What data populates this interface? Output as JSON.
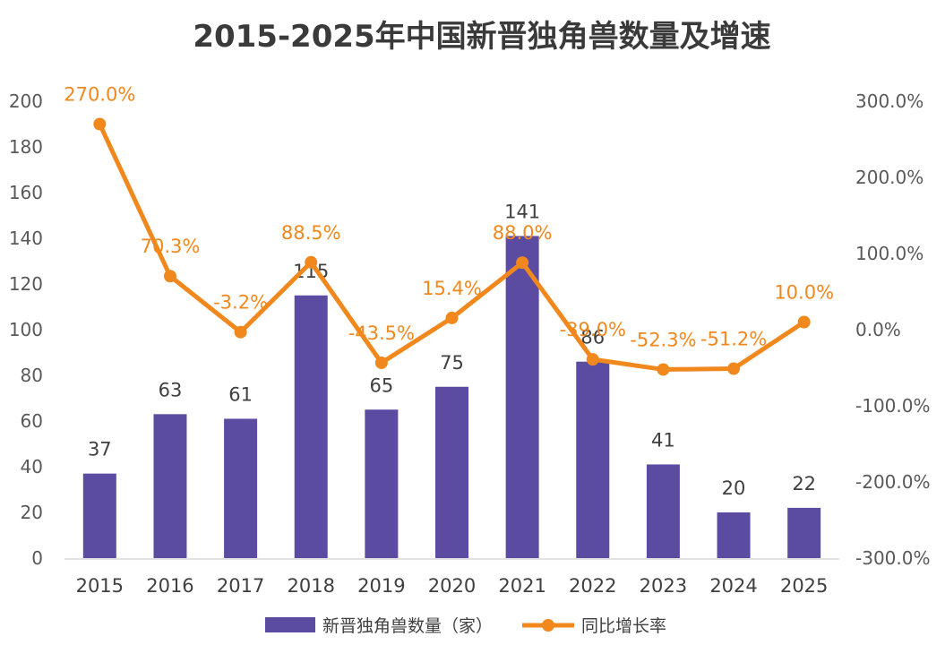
{
  "chart_data": {
    "type": "bar",
    "title": "2015-2025年中国新晋独角兽数量及增速",
    "categories": [
      "2015",
      "2016",
      "2017",
      "2018",
      "2019",
      "2020",
      "2021",
      "2022",
      "2023",
      "2024",
      "2025"
    ],
    "series": [
      {
        "name": "新晋独角兽数量（家）",
        "type": "bar",
        "axis": "left",
        "color": "#5b4ca2",
        "values": [
          37,
          63,
          61,
          115,
          65,
          75,
          141,
          86,
          41,
          20,
          22
        ],
        "labels": [
          "37",
          "63",
          "61",
          "115",
          "65",
          "75",
          "141",
          "86",
          "41",
          "20",
          "22"
        ]
      },
      {
        "name": "同比增长率",
        "type": "line",
        "axis": "right",
        "color": "#f0881e",
        "values": [
          270.0,
          70.3,
          -3.2,
          88.5,
          -43.5,
          15.4,
          88.0,
          -39.0,
          -52.3,
          -51.2,
          10.0
        ],
        "labels": [
          "270.0%",
          "70.3%",
          "-3.2%",
          "88.5%",
          "-43.5%",
          "15.4%",
          "88.0%",
          "-39.0%",
          "-52.3%",
          "-51.2%",
          "10.0%"
        ]
      }
    ],
    "y_left": {
      "min": 0,
      "max": 200,
      "ticks": [
        0,
        20,
        40,
        60,
        80,
        100,
        120,
        140,
        160,
        180,
        200
      ],
      "tick_labels": [
        "0",
        "20",
        "40",
        "60",
        "80",
        "100",
        "120",
        "140",
        "160",
        "180",
        "200"
      ]
    },
    "y_right": {
      "min": -300,
      "max": 300,
      "ticks": [
        -300,
        -200,
        -100,
        0,
        100,
        200,
        300
      ],
      "tick_labels": [
        "-300.0%",
        "-200.0%",
        "-100.0%",
        "0.0%",
        "100.0%",
        "200.0%",
        "300.0%"
      ]
    },
    "legend": [
      "新晋独角兽数量（家）",
      "同比增长率"
    ],
    "legend_position": "bottom",
    "grid": false
  }
}
